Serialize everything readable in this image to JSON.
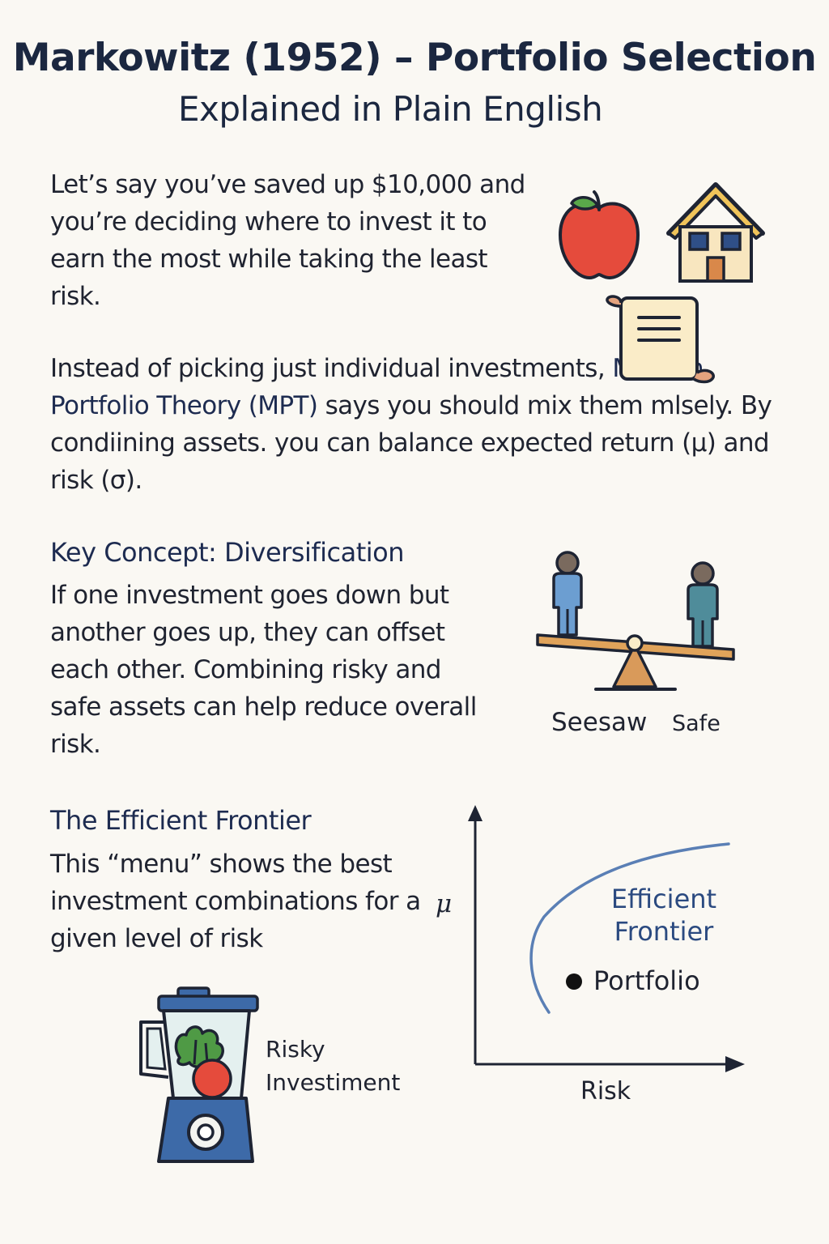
{
  "header": {
    "title": "Markowitz (1952) – Portfolio Selection",
    "subtitle": "Explained in Plain English"
  },
  "intro": {
    "paragraph1": "Let’s say you’ve saved up $10,000 and you’re deciding where to invest it to earn the most while taking the least risk.",
    "paragraph2_before": "Instead of picking just individual investments, ",
    "paragraph2_highlight": "Modern Portfolio Theory (MPT)",
    "paragraph2_after": " says you should mix them mlsely. By condiining assets. you can balance expected return (μ) and risk (σ)."
  },
  "key_concept": {
    "heading": "Key Concept: Diversification",
    "text": "If one investment goes down but another goes up, they can offset each other. Combining risky and safe assets can help reduce overall risk.",
    "seesaw_label": "Seesaw",
    "safe_label": "Safe"
  },
  "frontier": {
    "heading": "The Efficient Frontier",
    "text": "This “menu” shows the best investment combinations for a given level of risk",
    "risky_label": "Risky Investiment",
    "chart": {
      "y_label": "μ",
      "x_label": "Risk",
      "curve_label": "Efficient Frontier",
      "point_label": "Portfolio"
    }
  },
  "icons": {
    "apple": "apple-icon",
    "house": "house-icon",
    "scroll": "scroll-icon",
    "seesaw": "seesaw-icon",
    "blender": "blender-icon"
  },
  "colors": {
    "title": "#1b2740",
    "accent": "#2b4a80",
    "curve": "#5a7fb5",
    "apple": "#e54b3c"
  }
}
